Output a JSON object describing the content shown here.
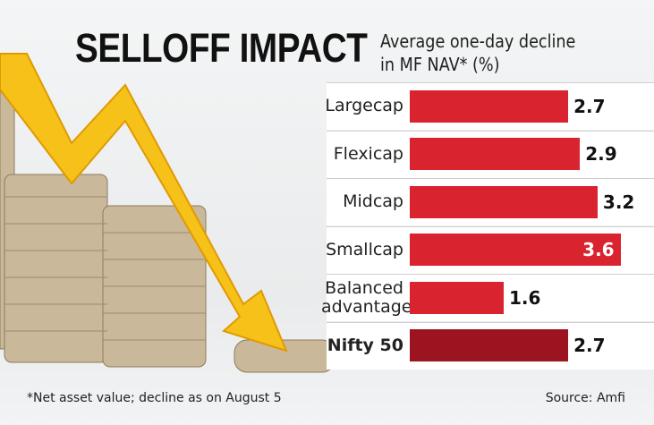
{
  "chart_data": {
    "type": "bar",
    "orientation": "horizontal",
    "title": "SELLOFF IMPACT",
    "subtitle": "Average one-day decline in MF NAV* (%)",
    "categories": [
      "Largecap",
      "Flexicap",
      "Midcap",
      "Smallcap",
      "Balanced advantage",
      "Nifty 50"
    ],
    "values": [
      2.7,
      2.9,
      3.2,
      3.6,
      1.6,
      2.7
    ],
    "colors": [
      "#d9232e",
      "#d9232e",
      "#d9232e",
      "#d9232e",
      "#d9232e",
      "#9c1420"
    ],
    "footnote": "*Net asset value; decline as on August 5",
    "source": "Source: Amfi"
  }
}
